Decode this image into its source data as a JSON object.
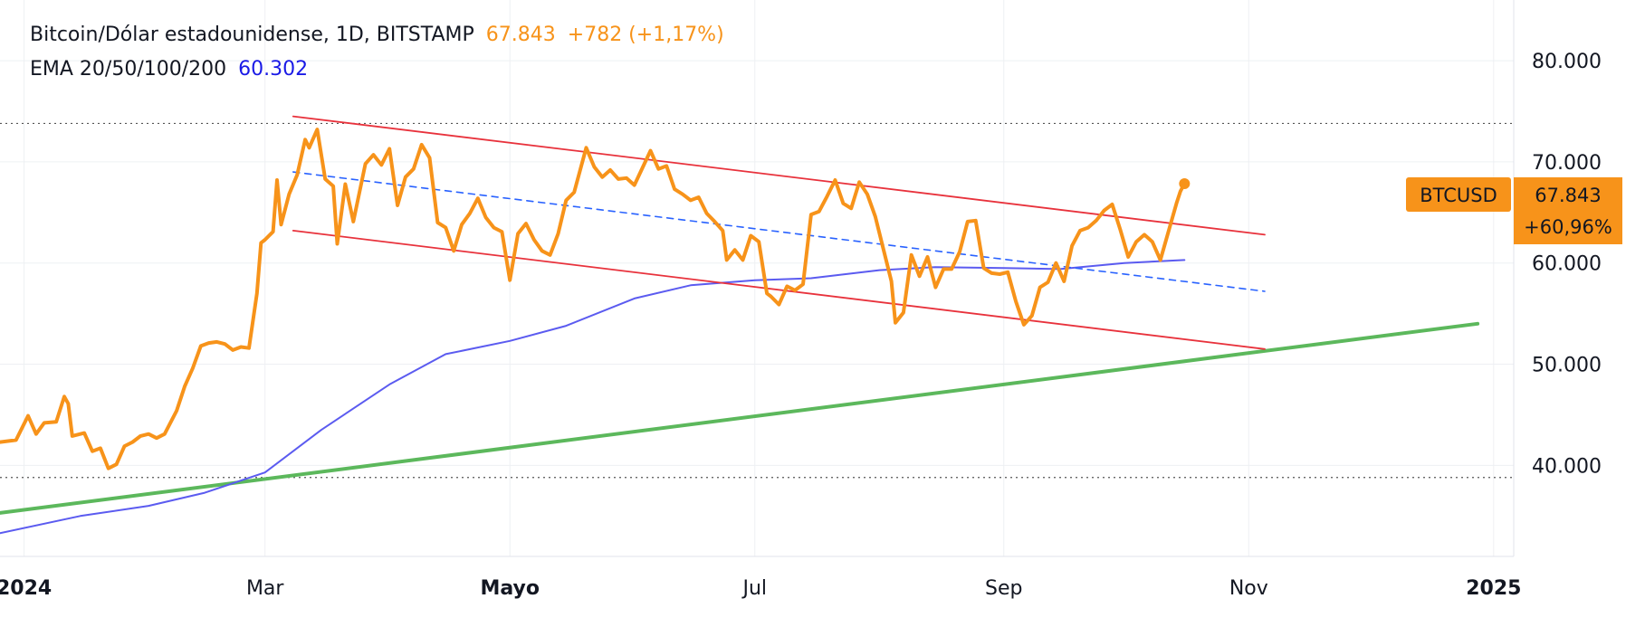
{
  "legend": {
    "symbol": "Bitcoin/Dólar estadounidense, 1D, BITSTAMP",
    "last_price": "67.843",
    "change": "+782 (+1,17%)",
    "ema_label": "EMA 20/50/100/200",
    "ema_value": "60.302"
  },
  "badge": {
    "ticker": "BTCUSD",
    "price": "67.843",
    "change_pct": "+60,96%"
  },
  "colors": {
    "price": "#f7931a",
    "ema": "#5b5bf0",
    "channel": "#e8323c",
    "midline": "#2962ff",
    "trendline": "#5cb85c",
    "grid": "#eef0f3",
    "dotted": "#555555"
  },
  "chart_data": {
    "type": "line",
    "x_axis_ticks": [
      {
        "label": "2024",
        "date": "2024-01-01"
      },
      {
        "label": "Mar",
        "date": "2024-03-01"
      },
      {
        "label": "Mayo",
        "date": "2024-05-01"
      },
      {
        "label": "Jul",
        "date": "2024-07-01"
      },
      {
        "label": "Sep",
        "date": "2024-09-01"
      },
      {
        "label": "Nov",
        "date": "2024-11-01"
      },
      {
        "label": "2025",
        "date": "2025-01-01"
      }
    ],
    "y_axis_ticks": [
      {
        "label": "40.000",
        "value": 40000
      },
      {
        "label": "50.000",
        "value": 50000
      },
      {
        "label": "60.000",
        "value": 60000
      },
      {
        "label": "70.000",
        "value": 70000
      },
      {
        "label": "80.000",
        "value": 80000
      }
    ],
    "xlim": [
      "2023-12-26",
      "2025-01-06"
    ],
    "ylim": [
      31000,
      86000
    ],
    "horizontal_dotted_levels": [
      73800,
      38800
    ],
    "series": [
      {
        "name": "BTCUSD",
        "points": [
          [
            "2023-12-26",
            42300
          ],
          [
            "2023-12-30",
            42500
          ],
          [
            "2024-01-02",
            44900
          ],
          [
            "2024-01-04",
            43100
          ],
          [
            "2024-01-06",
            44200
          ],
          [
            "2024-01-09",
            44300
          ],
          [
            "2024-01-11",
            46800
          ],
          [
            "2024-01-12",
            46100
          ],
          [
            "2024-01-13",
            42900
          ],
          [
            "2024-01-16",
            43200
          ],
          [
            "2024-01-18",
            41400
          ],
          [
            "2024-01-20",
            41700
          ],
          [
            "2024-01-22",
            39700
          ],
          [
            "2024-01-24",
            40100
          ],
          [
            "2024-01-26",
            41900
          ],
          [
            "2024-01-28",
            42300
          ],
          [
            "2024-01-30",
            42900
          ],
          [
            "2024-02-01",
            43100
          ],
          [
            "2024-02-03",
            42700
          ],
          [
            "2024-02-05",
            43100
          ],
          [
            "2024-02-08",
            45400
          ],
          [
            "2024-02-10",
            47800
          ],
          [
            "2024-02-12",
            49600
          ],
          [
            "2024-02-14",
            51800
          ],
          [
            "2024-02-16",
            52100
          ],
          [
            "2024-02-18",
            52200
          ],
          [
            "2024-02-20",
            52000
          ],
          [
            "2024-02-22",
            51400
          ],
          [
            "2024-02-24",
            51700
          ],
          [
            "2024-02-26",
            51600
          ],
          [
            "2024-02-28",
            57000
          ],
          [
            "2024-02-29",
            62000
          ],
          [
            "2024-03-01",
            62300
          ],
          [
            "2024-03-03",
            63100
          ],
          [
            "2024-03-04",
            68200
          ],
          [
            "2024-03-05",
            63800
          ],
          [
            "2024-03-07",
            66800
          ],
          [
            "2024-03-09",
            68700
          ],
          [
            "2024-03-11",
            72200
          ],
          [
            "2024-03-12",
            71400
          ],
          [
            "2024-03-14",
            73200
          ],
          [
            "2024-03-16",
            68300
          ],
          [
            "2024-03-18",
            67600
          ],
          [
            "2024-03-19",
            61900
          ],
          [
            "2024-03-21",
            67800
          ],
          [
            "2024-03-23",
            64100
          ],
          [
            "2024-03-26",
            69800
          ],
          [
            "2024-03-28",
            70700
          ],
          [
            "2024-03-30",
            69700
          ],
          [
            "2024-04-01",
            71300
          ],
          [
            "2024-04-03",
            65700
          ],
          [
            "2024-04-05",
            68500
          ],
          [
            "2024-04-07",
            69300
          ],
          [
            "2024-04-09",
            71700
          ],
          [
            "2024-04-11",
            70400
          ],
          [
            "2024-04-13",
            64000
          ],
          [
            "2024-04-15",
            63500
          ],
          [
            "2024-04-17",
            61200
          ],
          [
            "2024-04-19",
            63800
          ],
          [
            "2024-04-21",
            64900
          ],
          [
            "2024-04-23",
            66400
          ],
          [
            "2024-04-25",
            64500
          ],
          [
            "2024-04-27",
            63500
          ],
          [
            "2024-04-29",
            63100
          ],
          [
            "2024-05-01",
            58300
          ],
          [
            "2024-05-03",
            62900
          ],
          [
            "2024-05-05",
            63900
          ],
          [
            "2024-05-07",
            62300
          ],
          [
            "2024-05-09",
            61200
          ],
          [
            "2024-05-11",
            60800
          ],
          [
            "2024-05-13",
            62900
          ],
          [
            "2024-05-15",
            66200
          ],
          [
            "2024-05-17",
            67000
          ],
          [
            "2024-05-20",
            71400
          ],
          [
            "2024-05-22",
            69500
          ],
          [
            "2024-05-24",
            68500
          ],
          [
            "2024-05-26",
            69200
          ],
          [
            "2024-05-28",
            68300
          ],
          [
            "2024-05-30",
            68400
          ],
          [
            "2024-06-01",
            67700
          ],
          [
            "2024-06-03",
            69400
          ],
          [
            "2024-06-05",
            71100
          ],
          [
            "2024-06-07",
            69300
          ],
          [
            "2024-06-09",
            69600
          ],
          [
            "2024-06-11",
            67300
          ],
          [
            "2024-06-13",
            66800
          ],
          [
            "2024-06-15",
            66200
          ],
          [
            "2024-06-17",
            66500
          ],
          [
            "2024-06-19",
            64900
          ],
          [
            "2024-06-21",
            64100
          ],
          [
            "2024-06-23",
            63200
          ],
          [
            "2024-06-24",
            60300
          ],
          [
            "2024-06-26",
            61300
          ],
          [
            "2024-06-28",
            60300
          ],
          [
            "2024-06-30",
            62700
          ],
          [
            "2024-07-02",
            62100
          ],
          [
            "2024-07-04",
            57000
          ],
          [
            "2024-07-05",
            56700
          ],
          [
            "2024-07-07",
            55900
          ],
          [
            "2024-07-09",
            57700
          ],
          [
            "2024-07-11",
            57300
          ],
          [
            "2024-07-13",
            57900
          ],
          [
            "2024-07-15",
            64800
          ],
          [
            "2024-07-17",
            65100
          ],
          [
            "2024-07-19",
            66600
          ],
          [
            "2024-07-21",
            68200
          ],
          [
            "2024-07-23",
            65900
          ],
          [
            "2024-07-25",
            65400
          ],
          [
            "2024-07-27",
            68000
          ],
          [
            "2024-07-29",
            66800
          ],
          [
            "2024-07-31",
            64600
          ],
          [
            "2024-08-02",
            61400
          ],
          [
            "2024-08-04",
            58200
          ],
          [
            "2024-08-05",
            54100
          ],
          [
            "2024-08-07",
            55100
          ],
          [
            "2024-08-09",
            60800
          ],
          [
            "2024-08-11",
            58700
          ],
          [
            "2024-08-13",
            60600
          ],
          [
            "2024-08-15",
            57600
          ],
          [
            "2024-08-17",
            59400
          ],
          [
            "2024-08-19",
            59400
          ],
          [
            "2024-08-21",
            61100
          ],
          [
            "2024-08-23",
            64100
          ],
          [
            "2024-08-25",
            64200
          ],
          [
            "2024-08-27",
            59500
          ],
          [
            "2024-08-29",
            59000
          ],
          [
            "2024-08-31",
            58900
          ],
          [
            "2024-09-02",
            59100
          ],
          [
            "2024-09-04",
            56200
          ],
          [
            "2024-09-06",
            53900
          ],
          [
            "2024-09-08",
            54800
          ],
          [
            "2024-09-10",
            57600
          ],
          [
            "2024-09-12",
            58100
          ],
          [
            "2024-09-14",
            60000
          ],
          [
            "2024-09-16",
            58200
          ],
          [
            "2024-09-18",
            61700
          ],
          [
            "2024-09-20",
            63200
          ],
          [
            "2024-09-22",
            63500
          ],
          [
            "2024-09-24",
            64200
          ],
          [
            "2024-09-26",
            65200
          ],
          [
            "2024-09-28",
            65800
          ],
          [
            "2024-09-30",
            63300
          ],
          [
            "2024-10-02",
            60600
          ],
          [
            "2024-10-04",
            62100
          ],
          [
            "2024-10-06",
            62800
          ],
          [
            "2024-10-08",
            62100
          ],
          [
            "2024-10-10",
            60300
          ],
          [
            "2024-10-12",
            63100
          ],
          [
            "2024-10-14",
            65900
          ],
          [
            "2024-10-15",
            67100
          ],
          [
            "2024-10-16",
            67843
          ]
        ]
      },
      {
        "name": "EMA 200",
        "points": [
          [
            "2023-12-26",
            33300
          ],
          [
            "2024-01-15",
            35000
          ],
          [
            "2024-02-01",
            36000
          ],
          [
            "2024-02-15",
            37300
          ],
          [
            "2024-03-01",
            39300
          ],
          [
            "2024-03-15",
            43500
          ],
          [
            "2024-04-01",
            48000
          ],
          [
            "2024-04-15",
            51000
          ],
          [
            "2024-05-01",
            52300
          ],
          [
            "2024-05-15",
            53800
          ],
          [
            "2024-06-01",
            56500
          ],
          [
            "2024-06-15",
            57800
          ],
          [
            "2024-07-01",
            58300
          ],
          [
            "2024-07-15",
            58500
          ],
          [
            "2024-08-01",
            59300
          ],
          [
            "2024-08-15",
            59600
          ],
          [
            "2024-09-01",
            59500
          ],
          [
            "2024-09-15",
            59400
          ],
          [
            "2024-10-01",
            60000
          ],
          [
            "2024-10-16",
            60302
          ]
        ]
      },
      {
        "name": "Canal superior",
        "points": [
          [
            "2024-03-08",
            74500
          ],
          [
            "2024-11-05",
            62800
          ]
        ],
        "style": "solid"
      },
      {
        "name": "Canal inferior",
        "points": [
          [
            "2024-03-08",
            63200
          ],
          [
            "2024-11-05",
            51500
          ]
        ],
        "style": "solid"
      },
      {
        "name": "Línea media",
        "points": [
          [
            "2024-03-08",
            69000
          ],
          [
            "2024-11-05",
            57200
          ]
        ],
        "style": "dashed"
      },
      {
        "name": "Tendencia alcista",
        "points": [
          [
            "2023-12-26",
            35300
          ],
          [
            "2024-12-28",
            54000
          ]
        ],
        "style": "solid"
      }
    ]
  }
}
